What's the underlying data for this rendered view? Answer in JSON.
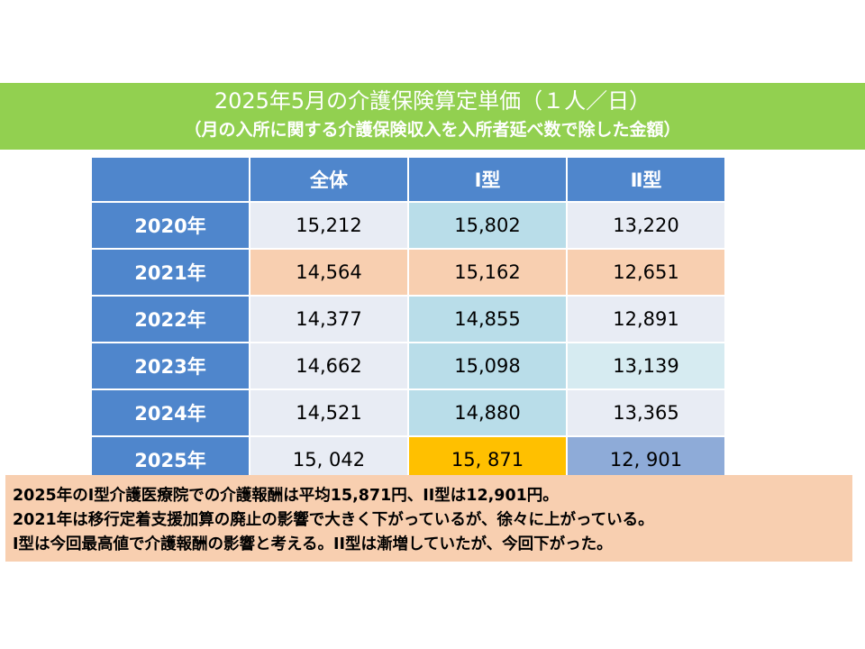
{
  "colors": {
    "banner": "#92d050",
    "header_blue": "#4f86cc",
    "light_gray": "#e8ecf4",
    "cyan": "#b9dde9",
    "peach": "#f8cfb0",
    "gold": "#ffc000",
    "mid_blue": "#8eabd8"
  },
  "banner": {
    "title": "2025年5月の介護保険算定単価（１人／日）",
    "subtitle": "（月の入所に関する介護保険収入を入所者延べ数で除した金額）"
  },
  "chart_data": {
    "type": "table",
    "title": "2025年5月の介護保険算定単価（１人／日）",
    "subtitle": "（月の入所に関する介護保険収入を入所者延べ数で除した金額）",
    "columns": [
      "",
      "全体",
      "Ⅰ型",
      "Ⅱ型"
    ],
    "rows": [
      {
        "year": "2020年",
        "values": [
          "15,212",
          "15,802",
          "13,220"
        ]
      },
      {
        "year": "2021年",
        "values": [
          "14,564",
          "15,162",
          "12,651"
        ]
      },
      {
        "year": "2022年",
        "values": [
          "14,377",
          "14,855",
          "12,891"
        ]
      },
      {
        "year": "2023年",
        "values": [
          "14,662",
          "15,098",
          "13,139"
        ]
      },
      {
        "year": "2024年",
        "values": [
          "14,521",
          "14,880",
          "13,365"
        ]
      },
      {
        "year": "2025年",
        "values": [
          "15, 042",
          "15, 871",
          "12, 901"
        ]
      }
    ]
  },
  "note": {
    "lines": [
      "2025年のI型介護医療院での介護報酬は平均15,871円、II型は12,901円。",
      "2021年は移行定着支援加算の廃止の影響で大きく下がっているが、徐々に上がっている。",
      "I型は今回最高値で介護報酬の影響と考える。II型は漸増していたが、今回下がった。"
    ]
  }
}
